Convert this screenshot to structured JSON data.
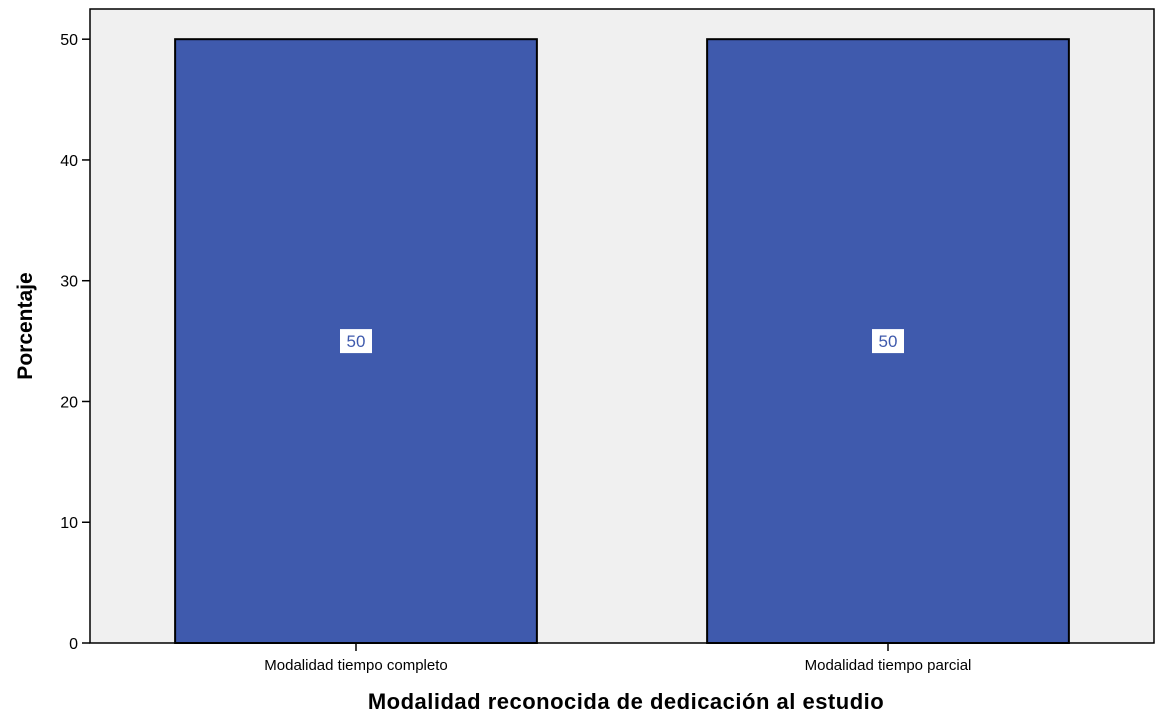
{
  "chart_data": {
    "type": "bar",
    "categories": [
      "Modalidad tiempo completo",
      "Modalidad tiempo parcial"
    ],
    "values": [
      50,
      50
    ],
    "data_labels": [
      "50",
      "50"
    ],
    "xlabel": "Modalidad reconocida de dedicación al estudio",
    "ylabel": "Porcentaje",
    "ylim": [
      0,
      52.5
    ],
    "yticks": [
      0,
      10,
      20,
      30,
      40,
      50
    ],
    "grid": false,
    "colors": {
      "bar_fill": "#3f5aad",
      "bar_stroke": "#000000",
      "plot_background": "#f0f0f0",
      "label_box": "#ffffff",
      "label_text": "#3f5aad"
    }
  }
}
